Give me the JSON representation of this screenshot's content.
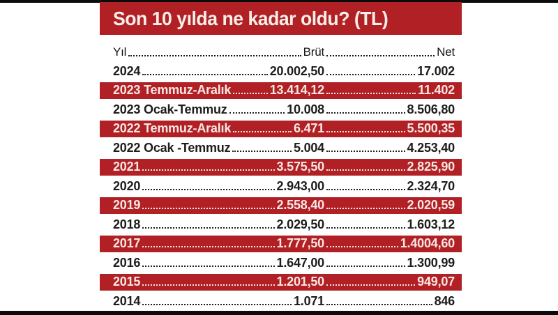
{
  "chart_data": {
    "type": "table",
    "title": "Son 10 yılda ne kadar oldu? (TL)",
    "columns": [
      "Yıl",
      "Brüt",
      "Net"
    ],
    "rows": [
      {
        "year": "2024",
        "brut": "20.002,50",
        "net": "17.002",
        "highlight": false
      },
      {
        "year": "2023 Temmuz-Aralık",
        "brut": "13.414,12",
        "net": "11.402",
        "highlight": true
      },
      {
        "year": "2023 Ocak-Temmuz",
        "brut": "10.008",
        "net": "8.506,80",
        "highlight": false
      },
      {
        "year": "2022 Temmuz-Aralık",
        "brut": "6.471",
        "net": "5.500,35",
        "highlight": true
      },
      {
        "year": "2022 Ocak -Temmuz",
        "brut": "5.004",
        "net": "4.253,40",
        "highlight": false
      },
      {
        "year": "2021",
        "brut": "3.575,50",
        "net": "2.825,90",
        "highlight": true
      },
      {
        "year": "2020",
        "brut": "2.943,00",
        "net": "2.324,70",
        "highlight": false
      },
      {
        "year": "2019",
        "brut": "2.558,40",
        "net": "2.020,59",
        "highlight": true
      },
      {
        "year": "2018",
        "brut": "2.029,50",
        "net": "1.603,12",
        "highlight": false
      },
      {
        "year": "2017",
        "brut": "1.777,50",
        "net": "1.4004,60",
        "highlight": true
      },
      {
        "year": "2016",
        "brut": "1.647,00",
        "net": "1.300,99",
        "highlight": false
      },
      {
        "year": "2015",
        "brut": "1.201,50",
        "net": "949,07",
        "highlight": true
      },
      {
        "year": "2014",
        "brut": "1.071",
        "net": "846",
        "highlight": false
      }
    ],
    "layout_hints": {
      "highlight_style": "alternating red bands on Temmuz-Aralık / odd-year rows",
      "leader_dots": true
    }
  },
  "colors": {
    "accent_red": "#b12025",
    "title_text": "#f8efe9",
    "highlight_row_text": "#f7e8e3",
    "body_text": "#1d1d1b",
    "edge_bar_black": "#0b0b0b",
    "background": "#ffffff"
  }
}
